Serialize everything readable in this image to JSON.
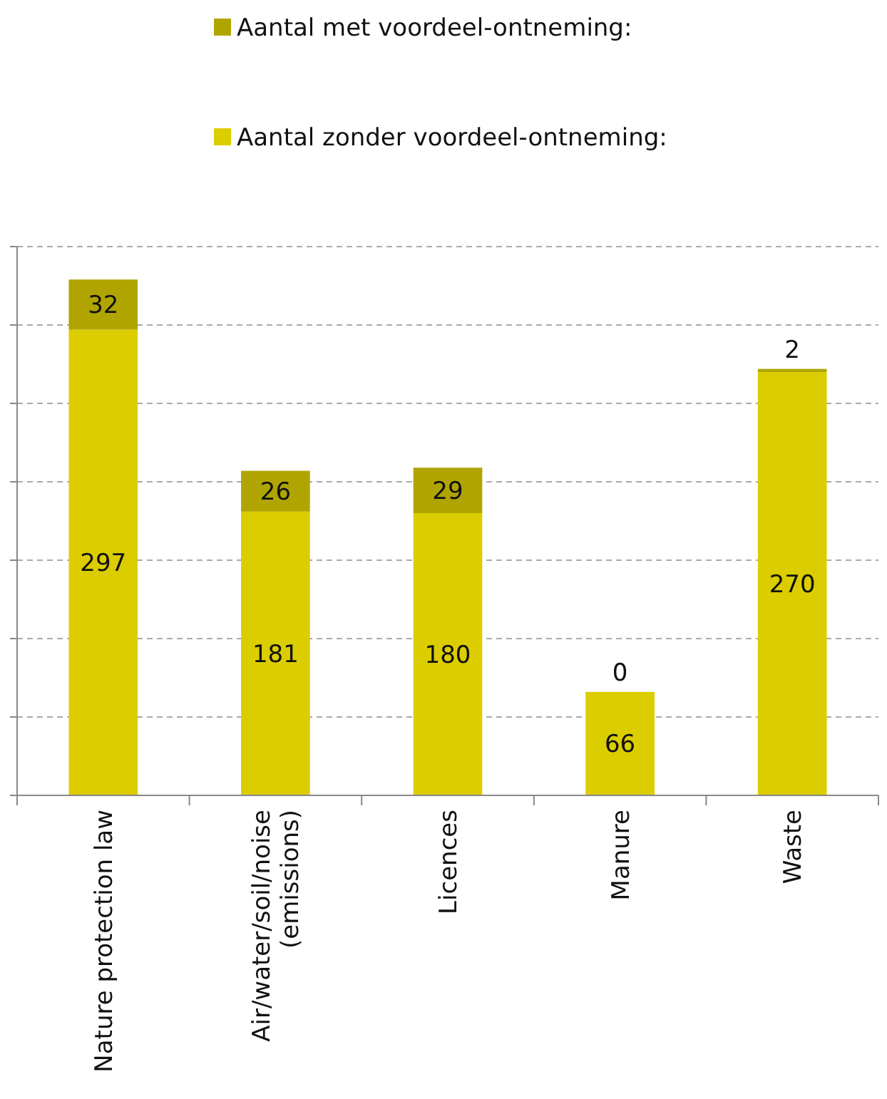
{
  "chart_data": {
    "type": "bar",
    "stacked": true,
    "categories": [
      "Nature protection law",
      "Air/water/soil/noise (emissions)",
      "Licences",
      "Manure",
      "Waste"
    ],
    "series": [
      {
        "name": "Aantal zonder voordeel-ontneming:",
        "color": "#dccd00",
        "values": [
          297,
          181,
          180,
          66,
          270
        ]
      },
      {
        "name": "Aantal met voordeel-ontneming:",
        "color": "#b0a500",
        "values": [
          32,
          26,
          29,
          0,
          2
        ]
      }
    ],
    "ylim": [
      0,
      350
    ],
    "yticks": [
      {
        "value": 0,
        "label": null
      },
      {
        "value": 50,
        "label": null
      },
      {
        "value": 100,
        "label": null
      },
      {
        "value": 150,
        "label": null
      },
      {
        "value": 200,
        "label": null
      },
      {
        "value": 250,
        "label": null
      },
      {
        "value": 300,
        "label": null
      },
      {
        "value": 350,
        "label": null
      }
    ],
    "grid": "y",
    "legend": "top",
    "data_labels": true,
    "tick_labels": "x"
  }
}
